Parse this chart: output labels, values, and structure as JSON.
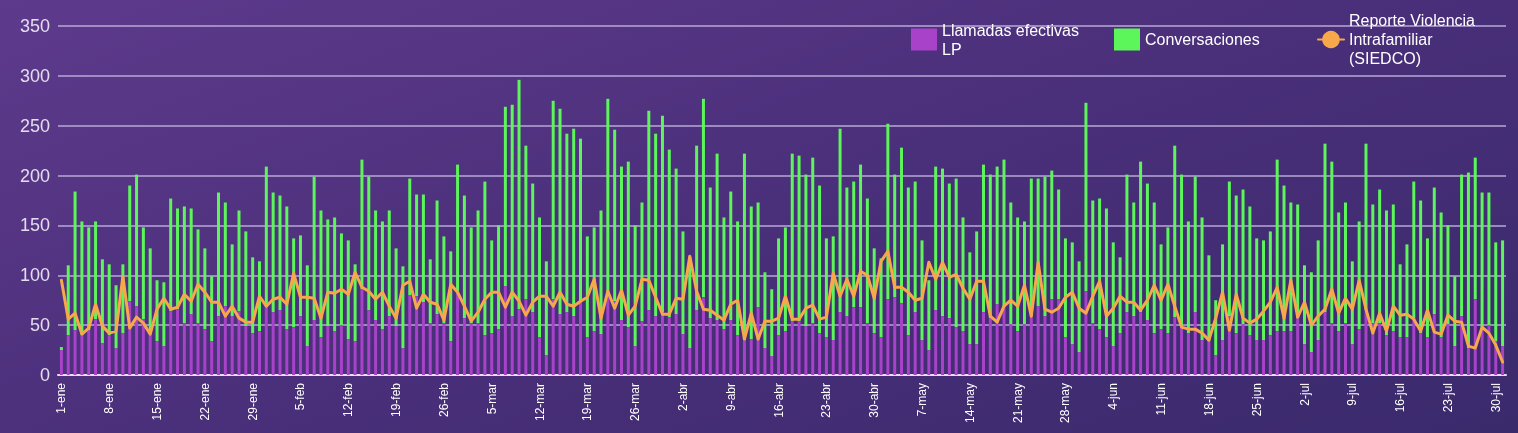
{
  "chart_data": {
    "type": "bar",
    "categories": [
      "1-ene",
      null,
      null,
      null,
      null,
      null,
      null,
      "8-ene",
      null,
      null,
      null,
      null,
      null,
      null,
      "15-ene",
      null,
      null,
      null,
      null,
      null,
      null,
      "22-ene",
      null,
      null,
      null,
      null,
      null,
      null,
      "29-ene",
      null,
      null,
      null,
      null,
      null,
      null,
      "5-feb",
      null,
      null,
      null,
      null,
      null,
      null,
      "12-feb",
      null,
      null,
      null,
      null,
      null,
      null,
      "19-feb",
      null,
      null,
      null,
      null,
      null,
      null,
      "26-feb",
      null,
      null,
      null,
      null,
      null,
      null,
      "5-mar",
      null,
      null,
      null,
      null,
      null,
      null,
      "12-mar",
      null,
      null,
      null,
      null,
      null,
      null,
      "19-mar",
      null,
      null,
      null,
      null,
      null,
      null,
      "26-mar",
      null,
      null,
      null,
      null,
      null,
      null,
      "2-abr",
      null,
      null,
      null,
      null,
      null,
      null,
      "9-abr",
      null,
      null,
      null,
      null,
      null,
      null,
      "16-abr",
      null,
      null,
      null,
      null,
      null,
      null,
      "23-abr",
      null,
      null,
      null,
      null,
      null,
      null,
      "30-abr",
      null,
      null,
      null,
      null,
      null,
      null,
      "7-may",
      null,
      null,
      null,
      null,
      null,
      null,
      "14-may",
      null,
      null,
      null,
      null,
      null,
      null,
      "21-may",
      null,
      null,
      null,
      null,
      null,
      null,
      "28-may",
      null,
      null,
      null,
      null,
      null,
      null,
      "4-jun",
      null,
      null,
      null,
      null,
      null,
      null,
      "11-jun",
      null,
      null,
      null,
      null,
      null,
      null,
      "18-jun",
      null,
      null,
      null,
      null,
      null,
      null,
      "25-jun",
      null,
      null,
      null,
      null,
      null,
      null,
      "2-jul",
      null,
      null,
      null,
      null,
      null,
      null,
      "9-jul",
      null,
      null,
      null,
      null,
      null,
      null,
      "16-jul",
      null,
      null,
      null,
      null,
      null,
      null,
      "23-jul",
      null,
      null,
      null,
      null,
      null,
      null,
      "30-jul",
      null
    ],
    "series": [
      {
        "name": "Llamadas efectivas LP",
        "color": "#a742c9",
        "values": [
          25,
          40,
          45,
          40,
          45,
          56,
          32,
          40,
          27,
          42,
          74,
          69,
          56,
          42,
          34,
          29,
          64,
          66,
          52,
          61,
          52,
          46,
          34,
          59,
          69,
          59,
          64,
          49,
          42,
          44,
          68,
          63,
          65,
          46,
          48,
          59,
          29,
          55,
          38,
          49,
          44,
          50,
          36,
          34,
          86,
          65,
          55,
          46,
          59,
          49,
          27,
          80,
          79,
          73,
          52,
          61,
          52,
          34,
          84,
          57,
          52,
          52,
          40,
          42,
          46,
          89,
          59,
          66,
          76,
          63,
          38,
          20,
          76,
          61,
          63,
          59,
          73,
          38,
          44,
          41,
          79,
          74,
          55,
          48,
          29,
          54,
          65,
          59,
          63,
          58,
          61,
          41,
          27,
          65,
          78,
          57,
          55,
          46,
          55,
          40,
          35,
          36,
          68,
          27,
          19,
          40,
          44,
          54,
          54,
          49,
          52,
          42,
          38,
          35,
          63,
          59,
          68,
          68,
          52,
          42,
          38,
          76,
          78,
          72,
          40,
          63,
          35,
          25,
          65,
          59,
          57,
          48,
          44,
          31,
          31,
          63,
          57,
          71,
          68,
          51,
          44,
          51,
          59,
          69,
          59,
          76,
          76,
          38,
          31,
          23,
          84,
          52,
          46,
          38,
          29,
          42,
          63,
          59,
          63,
          55,
          42,
          46,
          42,
          58,
          48,
          42,
          63,
          35,
          34,
          20,
          35,
          59,
          42,
          51,
          40,
          35,
          35,
          40,
          44,
          44,
          44,
          57,
          31,
          23,
          35,
          63,
          52,
          44,
          52,
          31,
          46,
          65,
          52,
          52,
          40,
          44,
          38,
          38,
          57,
          42,
          38,
          61,
          38,
          51,
          29,
          59,
          27,
          76,
          48,
          50,
          34,
          29
        ]
      },
      {
        "name": "Conversaciones",
        "color": "#5cf55a",
        "values": [
          3,
          70,
          139,
          114,
          103,
          98,
          84,
          71,
          63,
          69,
          116,
          132,
          92,
          85,
          61,
          64,
          113,
          101,
          117,
          106,
          94,
          81,
          65,
          124,
          104,
          72,
          101,
          95,
          76,
          70,
          141,
          120,
          115,
          123,
          89,
          81,
          81,
          144,
          127,
          107,
          114,
          92,
          99,
          77,
          130,
          134,
          110,
          108,
          106,
          78,
          82,
          117,
          102,
          108,
          64,
          114,
          87,
          90,
          127,
          123,
          96,
          113,
          154,
          93,
          104,
          180,
          212,
          230,
          154,
          129,
          120,
          94,
          199,
          206,
          179,
          188,
          164,
          101,
          104,
          124,
          198,
          172,
          154,
          166,
          121,
          119,
          200,
          183,
          197,
          168,
          146,
          103,
          91,
          165,
          199,
          131,
          167,
          112,
          129,
          114,
          187,
          133,
          105,
          76,
          67,
          97,
          104,
          168,
          166,
          152,
          166,
          148,
          99,
          104,
          184,
          129,
          126,
          143,
          125,
          85,
          79,
          176,
          123,
          156,
          148,
          131,
          100,
          70,
          144,
          148,
          135,
          149,
          114,
          92,
          113,
          148,
          144,
          138,
          148,
          122,
          114,
          103,
          138,
          128,
          140,
          129,
          110,
          99,
          102,
          91,
          189,
          123,
          131,
          129,
          104,
          76,
          138,
          114,
          151,
          137,
          131,
          85,
          106,
          172,
          153,
          112,
          136,
          123,
          86,
          55,
          96,
          135,
          138,
          135,
          129,
          102,
          100,
          104,
          172,
          146,
          129,
          114,
          79,
          80,
          100,
          169,
          162,
          119,
          121,
          83,
          108,
          167,
          119,
          134,
          125,
          127,
          73,
          93,
          137,
          133,
          99,
          127,
          125,
          99,
          70,
          142,
          176,
          142,
          135,
          133,
          99,
          106
        ]
      },
      {
        "name": "Reporte Violencia Intrafamiliar (SIEDCO)",
        "type": "line",
        "color": "#f7a84a",
        "values": [
          95,
          56,
          62,
          41,
          47,
          71,
          49,
          42,
          44,
          99,
          47,
          58,
          52,
          41,
          66,
          77,
          66,
          68,
          81,
          74,
          91,
          83,
          73,
          73,
          59,
          69,
          57,
          53,
          53,
          79,
          69,
          76,
          78,
          71,
          102,
          78,
          78,
          77,
          57,
          83,
          82,
          86,
          81,
          103,
          88,
          84,
          76,
          83,
          69,
          57,
          90,
          94,
          67,
          81,
          73,
          71,
          55,
          91,
          83,
          69,
          54,
          63,
          76,
          83,
          83,
          68,
          83,
          74,
          60,
          73,
          79,
          79,
          69,
          83,
          71,
          69,
          74,
          78,
          96,
          57,
          84,
          67,
          85,
          60,
          69,
          96,
          95,
          78,
          61,
          61,
          77,
          76,
          119,
          84,
          66,
          65,
          60,
          55,
          71,
          75,
          36,
          62,
          36,
          54,
          54,
          57,
          79,
          56,
          56,
          67,
          70,
          56,
          58,
          102,
          79,
          96,
          79,
          104,
          100,
          77,
          114,
          124,
          88,
          88,
          83,
          75,
          77,
          113,
          96,
          113,
          98,
          101,
          87,
          76,
          94,
          94,
          59,
          53,
          69,
          75,
          69,
          90,
          59,
          113,
          66,
          63,
          67,
          78,
          83,
          67,
          62,
          79,
          94,
          59,
          67,
          79,
          73,
          73,
          65,
          75,
          90,
          75,
          91,
          69,
          48,
          46,
          46,
          42,
          35,
          57,
          83,
          45,
          81,
          57,
          52,
          56,
          64,
          73,
          88,
          57,
          95,
          58,
          73,
          50,
          59,
          66,
          86,
          62,
          77,
          66,
          95,
          66,
          42,
          62,
          44,
          69,
          60,
          61,
          56,
          44,
          65,
          43,
          41,
          60,
          54,
          53,
          29,
          27,
          48,
          42,
          30,
          13
        ]
      }
    ],
    "ylim": [
      0,
      350
    ],
    "yticks": [
      0,
      50,
      100,
      150,
      200,
      250,
      300,
      350
    ],
    "stacked": true,
    "grid": "y",
    "legend": "top right",
    "marker": "none"
  }
}
